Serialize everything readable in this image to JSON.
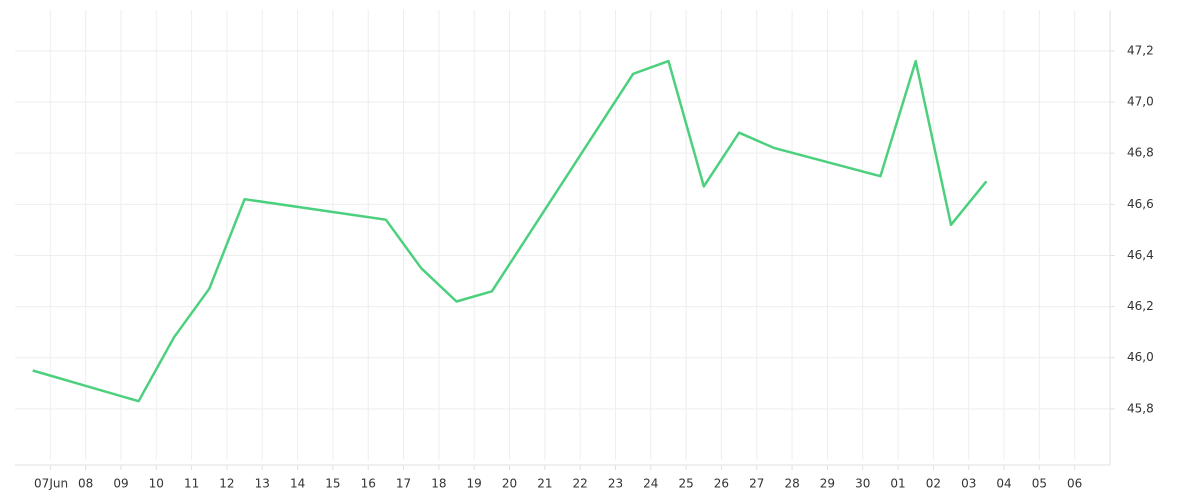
{
  "chart_data": {
    "type": "line",
    "x_month_label": "Jun",
    "xlim": [
      -1,
      30
    ],
    "xticks": [
      {
        "value": 0,
        "label": "07"
      },
      {
        "value": 1,
        "label": "08"
      },
      {
        "value": 2,
        "label": "09"
      },
      {
        "value": 3,
        "label": "10"
      },
      {
        "value": 4,
        "label": "11"
      },
      {
        "value": 5,
        "label": "12"
      },
      {
        "value": 6,
        "label": "13"
      },
      {
        "value": 7,
        "label": "14"
      },
      {
        "value": 8,
        "label": "15"
      },
      {
        "value": 9,
        "label": "16"
      },
      {
        "value": 10,
        "label": "17"
      },
      {
        "value": 11,
        "label": "18"
      },
      {
        "value": 12,
        "label": "19"
      },
      {
        "value": 13,
        "label": "20"
      },
      {
        "value": 14,
        "label": "21"
      },
      {
        "value": 15,
        "label": "22"
      },
      {
        "value": 16,
        "label": "23"
      },
      {
        "value": 17,
        "label": "24"
      },
      {
        "value": 18,
        "label": "25"
      },
      {
        "value": 19,
        "label": "26"
      },
      {
        "value": 20,
        "label": "27"
      },
      {
        "value": 21,
        "label": "28"
      },
      {
        "value": 22,
        "label": "29"
      },
      {
        "value": 23,
        "label": "30"
      },
      {
        "value": 24,
        "label": "01"
      },
      {
        "value": 25,
        "label": "02"
      },
      {
        "value": 26,
        "label": "03"
      },
      {
        "value": 27,
        "label": "04"
      },
      {
        "value": 28,
        "label": "05"
      },
      {
        "value": 29,
        "label": "06"
      }
    ],
    "ylim": [
      45.6,
      47.36
    ],
    "yticks": [
      {
        "value": 45.8,
        "label": "45,8"
      },
      {
        "value": 46.0,
        "label": "46,0"
      },
      {
        "value": 46.2,
        "label": "46,2"
      },
      {
        "value": 46.4,
        "label": "46,4"
      },
      {
        "value": 46.6,
        "label": "46,6"
      },
      {
        "value": 46.8,
        "label": "46,8"
      },
      {
        "value": 47.0,
        "label": "47,0"
      },
      {
        "value": 47.2,
        "label": "47,2"
      }
    ],
    "grid": true,
    "series": [
      {
        "color": "#4cd07d",
        "x": [
          -0.5,
          2.5,
          3.5,
          4.5,
          5.5,
          9.5,
          10.5,
          11.5,
          12.5,
          16.5,
          17.5,
          18.5,
          19.5,
          20.5,
          23.5,
          24.5,
          25.5,
          26.5
        ],
        "values": [
          45.95,
          45.83,
          46.08,
          46.27,
          46.62,
          46.54,
          46.35,
          46.22,
          46.26,
          47.11,
          47.16,
          46.67,
          46.88,
          46.82,
          46.71,
          47.16,
          46.52,
          46.69
        ]
      }
    ]
  }
}
